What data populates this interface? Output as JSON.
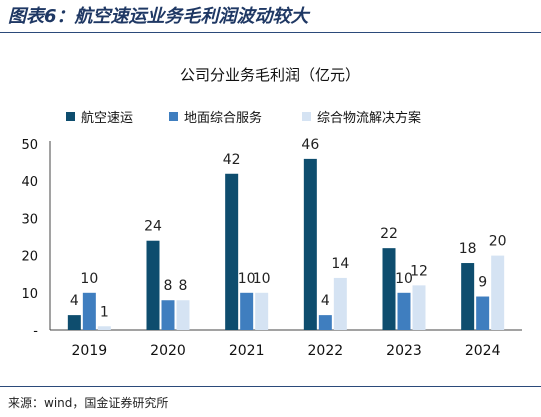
{
  "figure_title": "图表6：航空速运业务毛利润波动较大",
  "source": "来源：wind，国金证券研究所",
  "chart_data": {
    "type": "bar",
    "title": "公司分业务毛利润（亿元）",
    "xlabel": "",
    "ylabel": "",
    "categories": [
      "2019",
      "2020",
      "2021",
      "2022",
      "2023",
      "2024"
    ],
    "ylim": [
      0,
      50
    ],
    "yticks": [
      "-",
      "10",
      "20",
      "30",
      "40",
      "50"
    ],
    "grid": false,
    "legend_position": "top",
    "series": [
      {
        "name": "航空速运",
        "color": "#0e4d6e",
        "values": [
          4,
          24,
          42,
          46,
          22,
          18
        ],
        "labels": [
          "4",
          "24",
          "42",
          "46",
          "22",
          "18"
        ]
      },
      {
        "name": "地面综合服务",
        "color": "#3f7ebf",
        "values": [
          10,
          8,
          10,
          4,
          10,
          9
        ],
        "labels": [
          "10",
          "8",
          "10",
          "4",
          "10",
          "9"
        ]
      },
      {
        "name": "综合物流解决方案",
        "color": "#d5e3f3",
        "values": [
          1,
          8,
          10,
          14,
          12,
          20
        ],
        "labels": [
          "1",
          "8",
          "10",
          "14",
          "12",
          "20"
        ]
      }
    ]
  }
}
